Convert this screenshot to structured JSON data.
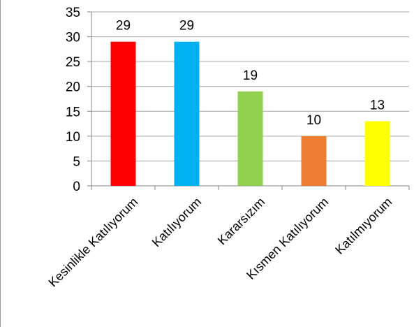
{
  "chart_data": {
    "type": "bar",
    "title": "",
    "xlabel": "",
    "ylabel": "",
    "categories": [
      "Kesinlikle Katılıyorum",
      "Katılıyorum",
      "Kararsızım",
      "Kısmen Katılıyorum",
      "Katılmıyorum"
    ],
    "values": [
      29,
      29,
      19,
      10,
      13
    ],
    "data_labels": [
      "29",
      "29",
      "19",
      "10",
      "13"
    ],
    "colors": [
      "#ff0000",
      "#00b0f0",
      "#92d050",
      "#ed7d31",
      "#ffff00"
    ],
    "ylim": [
      0,
      35
    ],
    "yticks": [
      0,
      5,
      10,
      15,
      20,
      25,
      30,
      35
    ],
    "ytick_labels": [
      "0",
      "5",
      "10",
      "15",
      "20",
      "25",
      "30",
      "35"
    ],
    "grid": true,
    "legend": "none",
    "gridline_color": "#a6a6a6"
  }
}
